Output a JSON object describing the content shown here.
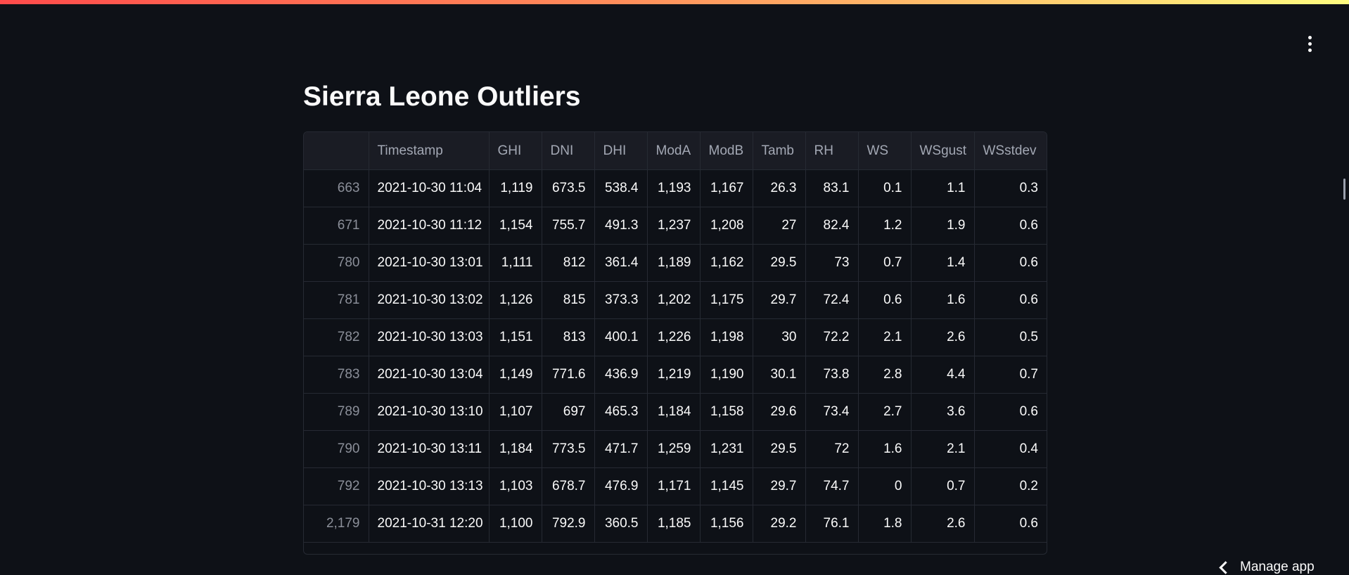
{
  "page": {
    "title": "Sierra Leone Outliers"
  },
  "footer": {
    "manage_app_label": "Manage app"
  },
  "icons": {
    "menu": "kebab-vertical-icon",
    "manage": "chevron-left-icon"
  },
  "colors": {
    "background": "#0e1117",
    "header_bg": "#1a1c24",
    "accent_gradient_start": "#ff4b4b",
    "accent_gradient_end": "#fffd80"
  },
  "table": {
    "columns": [
      "",
      "Timestamp",
      "GHI",
      "DNI",
      "DHI",
      "ModA",
      "ModB",
      "Tamb",
      "RH",
      "WS",
      "WSgust",
      "WSstdev"
    ],
    "rows": [
      [
        "663",
        "2021-10-30 11:04",
        "1,119",
        "673.5",
        "538.4",
        "1,193",
        "1,167",
        "26.3",
        "83.1",
        "0.1",
        "1.1",
        "0.3"
      ],
      [
        "671",
        "2021-10-30 11:12",
        "1,154",
        "755.7",
        "491.3",
        "1,237",
        "1,208",
        "27",
        "82.4",
        "1.2",
        "1.9",
        "0.6"
      ],
      [
        "780",
        "2021-10-30 13:01",
        "1,111",
        "812",
        "361.4",
        "1,189",
        "1,162",
        "29.5",
        "73",
        "0.7",
        "1.4",
        "0.6"
      ],
      [
        "781",
        "2021-10-30 13:02",
        "1,126",
        "815",
        "373.3",
        "1,202",
        "1,175",
        "29.7",
        "72.4",
        "0.6",
        "1.6",
        "0.6"
      ],
      [
        "782",
        "2021-10-30 13:03",
        "1,151",
        "813",
        "400.1",
        "1,226",
        "1,198",
        "30",
        "72.2",
        "2.1",
        "2.6",
        "0.5"
      ],
      [
        "783",
        "2021-10-30 13:04",
        "1,149",
        "771.6",
        "436.9",
        "1,219",
        "1,190",
        "30.1",
        "73.8",
        "2.8",
        "4.4",
        "0.7"
      ],
      [
        "789",
        "2021-10-30 13:10",
        "1,107",
        "697",
        "465.3",
        "1,184",
        "1,158",
        "29.6",
        "73.4",
        "2.7",
        "3.6",
        "0.6"
      ],
      [
        "790",
        "2021-10-30 13:11",
        "1,184",
        "773.5",
        "471.7",
        "1,259",
        "1,231",
        "29.5",
        "72",
        "1.6",
        "2.1",
        "0.4"
      ],
      [
        "792",
        "2021-10-30 13:13",
        "1,103",
        "678.7",
        "476.9",
        "1,171",
        "1,145",
        "29.7",
        "74.7",
        "0",
        "0.7",
        "0.2"
      ],
      [
        "2,179",
        "2021-10-31 12:20",
        "1,100",
        "792.9",
        "360.5",
        "1,185",
        "1,156",
        "29.2",
        "76.1",
        "1.8",
        "2.6",
        "0.6"
      ]
    ]
  }
}
